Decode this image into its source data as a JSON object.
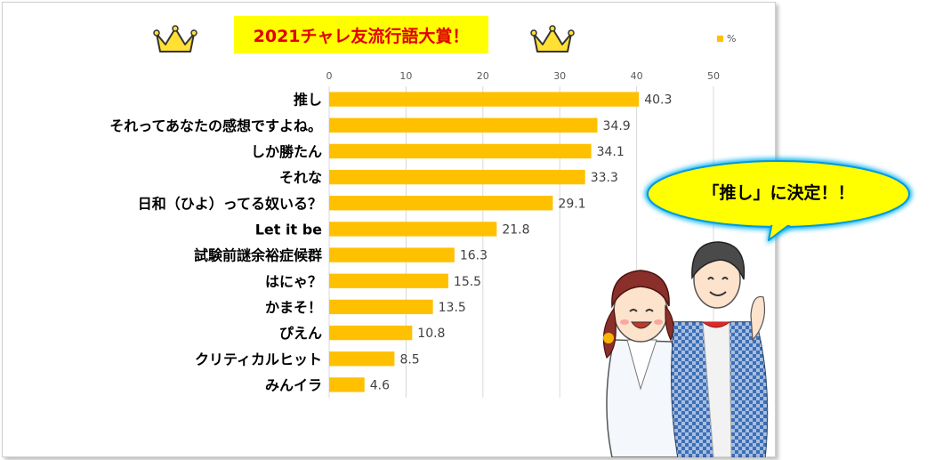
{
  "title": "2021チャレ友流行語大賞！",
  "legend": {
    "label": "%",
    "color": "#ffc000"
  },
  "bubble_text": "「推し」に決定！！",
  "chart_data": {
    "type": "bar",
    "orientation": "horizontal",
    "title": "2021チャレ友流行語大賞！",
    "categories": [
      "推し",
      "それってあなたの感想ですよね。",
      "しか勝たん",
      "それな",
      "日和（ひよ）ってる奴いる？",
      "Let it be",
      "試験前謎余裕症候群",
      "はにゃ？",
      "かまそ！",
      "ぴえん",
      "クリティカルヒット",
      "みんイラ"
    ],
    "series": [
      {
        "name": "%",
        "values": [
          40.3,
          34.9,
          34.1,
          33.3,
          29.1,
          21.8,
          16.3,
          15.5,
          13.5,
          10.8,
          8.5,
          4.6
        ]
      }
    ],
    "value_labels": [
      "40.3",
      "34.9",
      "34.1",
      "33.3",
      "29.1",
      "21.8",
      "16.3",
      "15.5",
      "13.5",
      "10.8",
      "8.5",
      "4.6"
    ],
    "xlim": [
      0,
      50
    ],
    "xticks": [
      "0",
      "10",
      "20",
      "30",
      "40",
      "50"
    ],
    "axis_position": "top",
    "grid": true,
    "legend_position": "top-right",
    "bar_color": "#ffc000"
  }
}
